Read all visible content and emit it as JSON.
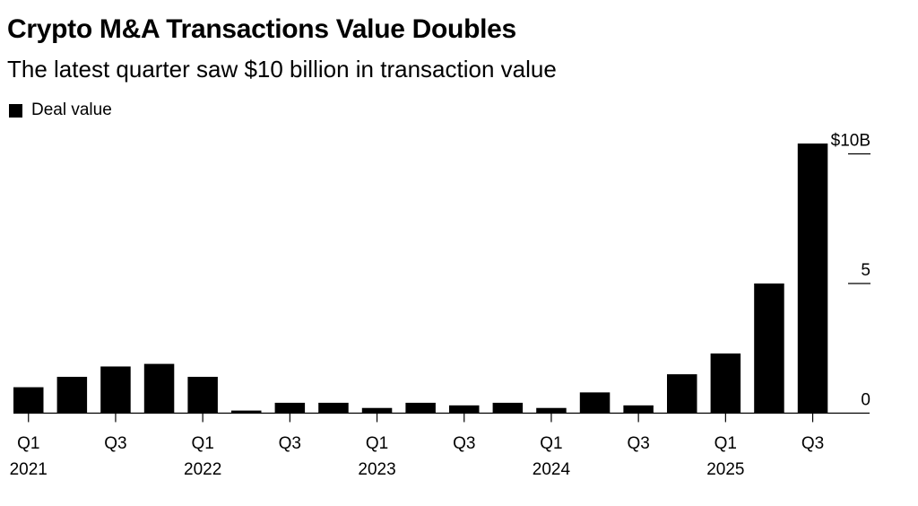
{
  "header": {
    "title": "Crypto M&A Transactions Value Doubles",
    "subtitle": "The latest quarter saw $10 billion in transaction value"
  },
  "legend": {
    "label": "Deal value",
    "color": "#000000"
  },
  "chart_data": {
    "type": "bar",
    "title": "Crypto M&A Transactions Value Doubles",
    "subtitle": "The latest quarter saw $10 billion in transaction value",
    "xlabel": "",
    "ylabel": "",
    "legend": [
      "Deal value"
    ],
    "legend_position": "top-left",
    "bar_color": "#000000",
    "unit": "billion USD",
    "categories": [
      "Q1 2021",
      "Q2 2021",
      "Q3 2021",
      "Q4 2021",
      "Q1 2022",
      "Q2 2022",
      "Q3 2022",
      "Q4 2022",
      "Q1 2023",
      "Q2 2023",
      "Q3 2023",
      "Q4 2023",
      "Q1 2024",
      "Q2 2024",
      "Q3 2024",
      "Q4 2024",
      "Q1 2025",
      "Q2 2025",
      "Q3 2025"
    ],
    "series": [
      {
        "name": "Deal value",
        "values": [
          1.0,
          1.4,
          1.8,
          1.9,
          1.4,
          0.1,
          0.4,
          0.4,
          0.2,
          0.4,
          0.3,
          0.4,
          0.2,
          0.8,
          0.3,
          1.5,
          2.3,
          5.0,
          10.4
        ]
      }
    ],
    "ylim": [
      0,
      10.4
    ],
    "y_ticks": [
      {
        "value": 0,
        "label": "0"
      },
      {
        "value": 5,
        "label": "5"
      },
      {
        "value": 10,
        "label": "$10B"
      }
    ],
    "x_tick_labels": [
      {
        "index": 0,
        "quarter": "Q1",
        "year": "2021"
      },
      {
        "index": 2,
        "quarter": "Q3",
        "year": ""
      },
      {
        "index": 4,
        "quarter": "Q1",
        "year": "2022"
      },
      {
        "index": 6,
        "quarter": "Q3",
        "year": ""
      },
      {
        "index": 8,
        "quarter": "Q1",
        "year": "2023"
      },
      {
        "index": 10,
        "quarter": "Q3",
        "year": ""
      },
      {
        "index": 12,
        "quarter": "Q1",
        "year": "2024"
      },
      {
        "index": 14,
        "quarter": "Q3",
        "year": ""
      },
      {
        "index": 16,
        "quarter": "Q1",
        "year": "2025"
      },
      {
        "index": 18,
        "quarter": "Q3",
        "year": ""
      }
    ],
    "y_axis_side": "right",
    "grid": false
  }
}
